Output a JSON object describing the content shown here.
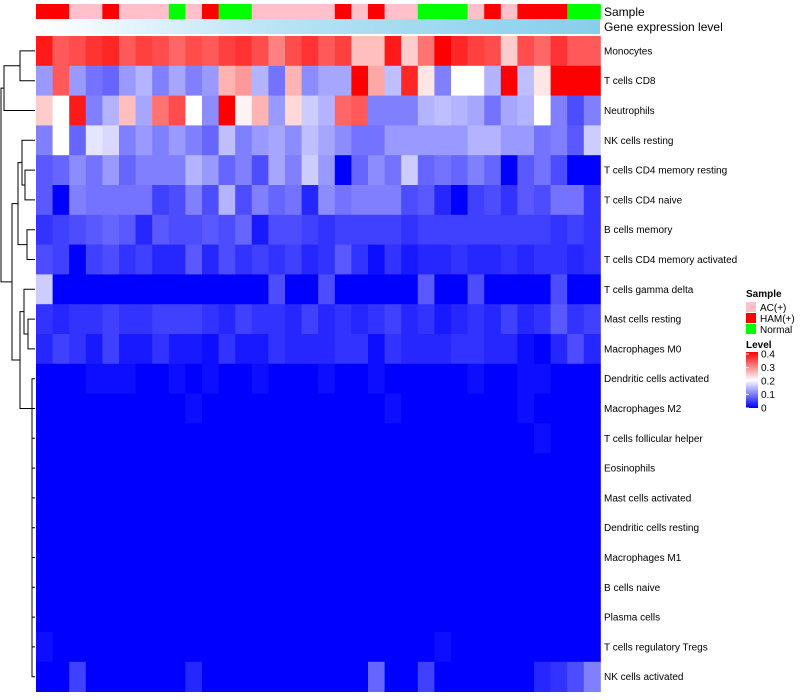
{
  "chart_data": {
    "type": "heatmap",
    "annotation_tracks": [
      "Sample",
      "Gene expression level"
    ],
    "samples": [
      "HAM(+)",
      "HAM(+)",
      "AC(+)",
      "AC(+)",
      "HAM(+)",
      "AC(+)",
      "AC(+)",
      "AC(+)",
      "Normal",
      "AC(+)",
      "HAM(+)",
      "Normal",
      "Normal",
      "AC(+)",
      "AC(+)",
      "AC(+)",
      "AC(+)",
      "AC(+)",
      "HAM(+)",
      "AC(+)",
      "HAM(+)",
      "AC(+)",
      "AC(+)",
      "Normal",
      "Normal",
      "Normal",
      "AC(+)",
      "HAM(+)",
      "AC(+)",
      "HAM(+)",
      "HAM(+)",
      "HAM(+)",
      "Normal",
      "Normal"
    ],
    "rows": [
      {
        "label": "Monocytes",
        "values": [
          0.38,
          0.33,
          0.34,
          0.36,
          0.37,
          0.33,
          0.35,
          0.34,
          0.32,
          0.34,
          0.33,
          0.35,
          0.36,
          0.34,
          0.3,
          0.34,
          0.36,
          0.33,
          0.35,
          0.25,
          0.25,
          0.38,
          0.24,
          0.31,
          0.4,
          0.37,
          0.35,
          0.34,
          0.24,
          0.34,
          0.32,
          0.36,
          0.33,
          0.33
        ]
      },
      {
        "label": "T cells CD8",
        "values": [
          0.12,
          0.33,
          0.12,
          0.09,
          0.08,
          0.12,
          0.14,
          0.1,
          0.13,
          0.1,
          0.12,
          0.26,
          0.28,
          0.14,
          0.09,
          0.26,
          0.11,
          0.13,
          0.13,
          0.4,
          0.27,
          0.15,
          0.37,
          0.22,
          0.1,
          0.2,
          0.2,
          0.14,
          0.42,
          0.15,
          0.22,
          0.4,
          0.41,
          0.43
        ]
      },
      {
        "label": "Neutrophils",
        "values": [
          0.24,
          0.2,
          0.38,
          0.1,
          0.14,
          0.25,
          0.13,
          0.31,
          0.34,
          0.2,
          0.11,
          0.42,
          0.21,
          0.26,
          0.12,
          0.23,
          0.16,
          0.14,
          0.32,
          0.33,
          0.1,
          0.1,
          0.1,
          0.14,
          0.15,
          0.14,
          0.13,
          0.09,
          0.13,
          0.14,
          0.2,
          0.1,
          0.06,
          0.1
        ]
      },
      {
        "label": "NK cells resting",
        "values": [
          0.1,
          0.2,
          0.08,
          0.18,
          0.17,
          0.1,
          0.12,
          0.1,
          0.12,
          0.1,
          0.08,
          0.15,
          0.1,
          0.12,
          0.13,
          0.11,
          0.15,
          0.13,
          0.11,
          0.09,
          0.09,
          0.12,
          0.12,
          0.12,
          0.12,
          0.12,
          0.14,
          0.14,
          0.12,
          0.12,
          0.09,
          0.1,
          0.07,
          0.16
        ]
      },
      {
        "label": "T cells CD4 memory resting",
        "values": [
          0.07,
          0.08,
          0.11,
          0.09,
          0.12,
          0.08,
          0.1,
          0.1,
          0.1,
          0.14,
          0.12,
          0.08,
          0.1,
          0.06,
          0.13,
          0.1,
          0.16,
          0.12,
          0.0,
          0.08,
          0.11,
          0.09,
          0.16,
          0.08,
          0.09,
          0.08,
          0.1,
          0.08,
          0.0,
          0.07,
          0.09,
          0.06,
          0.0,
          0.0
        ]
      },
      {
        "label": "T cells CD4 naive",
        "values": [
          0.07,
          0.0,
          0.1,
          0.09,
          0.09,
          0.09,
          0.09,
          0.05,
          0.06,
          0.1,
          0.06,
          0.14,
          0.06,
          0.1,
          0.08,
          0.09,
          0.03,
          0.11,
          0.09,
          0.1,
          0.1,
          0.1,
          0.06,
          0.07,
          0.03,
          0.0,
          0.05,
          0.06,
          0.04,
          0.07,
          0.06,
          0.09,
          0.09,
          0.04
        ]
      },
      {
        "label": "B cells memory",
        "values": [
          0.04,
          0.05,
          0.06,
          0.07,
          0.08,
          0.07,
          0.03,
          0.07,
          0.06,
          0.06,
          0.07,
          0.06,
          0.08,
          0.02,
          0.06,
          0.06,
          0.05,
          0.04,
          0.05,
          0.05,
          0.05,
          0.05,
          0.04,
          0.05,
          0.05,
          0.05,
          0.05,
          0.05,
          0.05,
          0.05,
          0.05,
          0.04,
          0.05,
          0.04
        ]
      },
      {
        "label": "T cells CD4 memory activated",
        "values": [
          0.06,
          0.05,
          0.0,
          0.05,
          0.06,
          0.04,
          0.05,
          0.03,
          0.03,
          0.07,
          0.03,
          0.06,
          0.04,
          0.05,
          0.04,
          0.05,
          0.03,
          0.04,
          0.07,
          0.04,
          0.01,
          0.04,
          0.02,
          0.03,
          0.03,
          0.04,
          0.03,
          0.03,
          0.04,
          0.03,
          0.04,
          0.04,
          0.03,
          0.04
        ]
      },
      {
        "label": "T cells gamma delta",
        "values": [
          0.16,
          0.0,
          0.0,
          0.0,
          0.0,
          0.0,
          0.0,
          0.0,
          0.0,
          0.0,
          0.0,
          0.0,
          0.0,
          0.0,
          0.06,
          0.0,
          0.0,
          0.06,
          0.0,
          0.0,
          0.0,
          0.0,
          0.0,
          0.07,
          0.0,
          0.0,
          0.06,
          0.0,
          0.0,
          0.0,
          0.0,
          0.06,
          0.0,
          0.0
        ]
      },
      {
        "label": "Mast cells resting",
        "values": [
          0.04,
          0.03,
          0.04,
          0.04,
          0.05,
          0.04,
          0.04,
          0.05,
          0.05,
          0.05,
          0.04,
          0.03,
          0.05,
          0.04,
          0.04,
          0.03,
          0.05,
          0.03,
          0.04,
          0.03,
          0.04,
          0.05,
          0.03,
          0.04,
          0.02,
          0.03,
          0.04,
          0.03,
          0.05,
          0.03,
          0.04,
          0.07,
          0.04,
          0.05
        ]
      },
      {
        "label": "Macrophages M0",
        "values": [
          0.03,
          0.05,
          0.04,
          0.02,
          0.05,
          0.02,
          0.02,
          0.04,
          0.02,
          0.02,
          0.01,
          0.04,
          0.02,
          0.02,
          0.04,
          0.03,
          0.03,
          0.03,
          0.04,
          0.04,
          0.01,
          0.04,
          0.03,
          0.03,
          0.03,
          0.04,
          0.04,
          0.03,
          0.03,
          0.01,
          0.0,
          0.03,
          0.06,
          0.03
        ]
      },
      {
        "label": "Dendritic cells activated",
        "values": [
          0.0,
          0.0,
          0.0,
          0.01,
          0.01,
          0.01,
          0.0,
          0.0,
          0.01,
          0.0,
          0.01,
          0.0,
          0.0,
          0.01,
          0.0,
          0.0,
          0.0,
          0.01,
          0.0,
          0.0,
          0.01,
          0.0,
          0.0,
          0.0,
          0.0,
          0.0,
          0.01,
          0.0,
          0.0,
          0.01,
          0.01,
          0.0,
          0.0,
          0.0
        ]
      },
      {
        "label": "Macrophages M2",
        "values": [
          0.0,
          0.0,
          0.0,
          0.0,
          0.0,
          0.0,
          0.0,
          0.0,
          0.0,
          0.01,
          0.0,
          0.0,
          0.0,
          0.0,
          0.0,
          0.0,
          0.0,
          0.0,
          0.0,
          0.0,
          0.0,
          0.01,
          0.0,
          0.0,
          0.0,
          0.0,
          0.0,
          0.0,
          0.0,
          0.01,
          0.0,
          0.0,
          0.0,
          0.0
        ]
      },
      {
        "label": "T cells follicular helper",
        "values": [
          0.0,
          0.0,
          0.0,
          0.0,
          0.0,
          0.0,
          0.0,
          0.0,
          0.0,
          0.0,
          0.0,
          0.0,
          0.0,
          0.0,
          0.0,
          0.0,
          0.0,
          0.0,
          0.0,
          0.0,
          0.0,
          0.0,
          0.0,
          0.0,
          0.0,
          0.0,
          0.0,
          0.0,
          0.0,
          0.0,
          0.01,
          0.0,
          0.0,
          0.0
        ]
      },
      {
        "label": "Eosinophils",
        "values": [
          0.0,
          0.0,
          0.0,
          0.0,
          0.0,
          0.0,
          0.0,
          0.0,
          0.0,
          0.0,
          0.0,
          0.0,
          0.0,
          0.0,
          0.0,
          0.0,
          0.0,
          0.0,
          0.0,
          0.0,
          0.0,
          0.0,
          0.0,
          0.0,
          0.0,
          0.0,
          0.0,
          0.0,
          0.0,
          0.0,
          0.0,
          0.0,
          0.0,
          0.0
        ]
      },
      {
        "label": "Mast cells activated",
        "values": [
          0.0,
          0.0,
          0.0,
          0.0,
          0.0,
          0.0,
          0.0,
          0.0,
          0.0,
          0.0,
          0.0,
          0.0,
          0.0,
          0.0,
          0.0,
          0.0,
          0.0,
          0.0,
          0.0,
          0.0,
          0.0,
          0.0,
          0.0,
          0.0,
          0.0,
          0.0,
          0.0,
          0.0,
          0.0,
          0.0,
          0.0,
          0.0,
          0.0,
          0.0
        ]
      },
      {
        "label": "Dendritic cells resting",
        "values": [
          0.0,
          0.0,
          0.0,
          0.0,
          0.0,
          0.0,
          0.0,
          0.0,
          0.0,
          0.0,
          0.0,
          0.0,
          0.0,
          0.0,
          0.0,
          0.0,
          0.0,
          0.0,
          0.0,
          0.0,
          0.0,
          0.0,
          0.0,
          0.0,
          0.0,
          0.0,
          0.0,
          0.0,
          0.0,
          0.0,
          0.0,
          0.0,
          0.0,
          0.0
        ]
      },
      {
        "label": "Macrophages M1",
        "values": [
          0.0,
          0.0,
          0.0,
          0.0,
          0.0,
          0.0,
          0.0,
          0.0,
          0.0,
          0.0,
          0.0,
          0.0,
          0.0,
          0.0,
          0.0,
          0.0,
          0.0,
          0.0,
          0.0,
          0.0,
          0.0,
          0.0,
          0.0,
          0.0,
          0.0,
          0.0,
          0.0,
          0.0,
          0.0,
          0.0,
          0.0,
          0.0,
          0.0,
          0.0
        ]
      },
      {
        "label": "B cells naive",
        "values": [
          0.0,
          0.0,
          0.0,
          0.0,
          0.0,
          0.0,
          0.0,
          0.0,
          0.0,
          0.0,
          0.0,
          0.0,
          0.0,
          0.0,
          0.0,
          0.0,
          0.0,
          0.0,
          0.0,
          0.0,
          0.0,
          0.0,
          0.0,
          0.0,
          0.0,
          0.0,
          0.0,
          0.0,
          0.0,
          0.0,
          0.0,
          0.0,
          0.0,
          0.0
        ]
      },
      {
        "label": "Plasma cells",
        "values": [
          0.0,
          0.0,
          0.0,
          0.0,
          0.0,
          0.0,
          0.0,
          0.0,
          0.0,
          0.0,
          0.0,
          0.0,
          0.0,
          0.0,
          0.0,
          0.0,
          0.0,
          0.0,
          0.0,
          0.0,
          0.0,
          0.0,
          0.0,
          0.0,
          0.0,
          0.0,
          0.0,
          0.0,
          0.0,
          0.0,
          0.0,
          0.0,
          0.0,
          0.0
        ]
      },
      {
        "label": "T cells regulatory  Tregs",
        "values": [
          0.01,
          0.0,
          0.0,
          0.0,
          0.0,
          0.0,
          0.0,
          0.0,
          0.0,
          0.0,
          0.0,
          0.0,
          0.0,
          0.0,
          0.0,
          0.0,
          0.0,
          0.0,
          0.0,
          0.0,
          0.0,
          0.0,
          0.0,
          0.0,
          0.01,
          0.0,
          0.0,
          0.0,
          0.0,
          0.0,
          0.0,
          0.0,
          0.0,
          0.0
        ]
      },
      {
        "label": "NK cells activated",
        "values": [
          0.0,
          0.0,
          0.05,
          0.0,
          0.0,
          0.0,
          0.0,
          0.0,
          0.0,
          0.03,
          0.0,
          0.0,
          0.0,
          0.0,
          0.0,
          0.0,
          0.0,
          0.0,
          0.0,
          0.0,
          0.08,
          0.0,
          0.0,
          0.05,
          0.0,
          0.0,
          0.0,
          0.0,
          0.0,
          0.0,
          0.03,
          0.04,
          0.06,
          0.1
        ]
      }
    ],
    "color_scale": {
      "low": "#0000FF",
      "mid": "#FFFFFF",
      "high": "#FF0000",
      "min": 0,
      "mid_value": 0.2,
      "max": 0.4
    },
    "legend": {
      "sample_title": "Sample",
      "sample_entries": [
        {
          "label": "AC(+)",
          "color": "#FFC0CB"
        },
        {
          "label": "HAM(+)",
          "color": "#FF0000"
        },
        {
          "label": "Normal",
          "color": "#00FF00"
        }
      ],
      "level_title": "Level",
      "level_ticks": [
        "0.4",
        "0.3",
        "0.2",
        "0.1",
        "0"
      ],
      "placement": "right"
    },
    "expression_track_colors": [
      "#ffffff",
      "#87ceeb"
    ]
  }
}
